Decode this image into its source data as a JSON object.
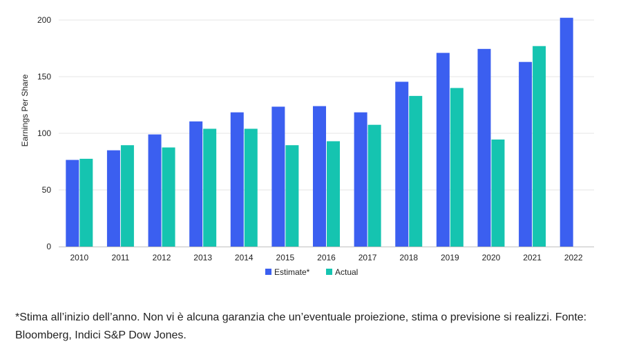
{
  "chart_data": {
    "type": "bar",
    "categories": [
      "2010",
      "2011",
      "2012",
      "2013",
      "2014",
      "2015",
      "2016",
      "2017",
      "2018",
      "2019",
      "2020",
      "2021",
      "2022"
    ],
    "series": [
      {
        "name": "Estimate*",
        "color": "#3b5ff0",
        "values": [
          76.5,
          85,
          99,
          110.5,
          118.5,
          123.5,
          124,
          118.5,
          145.5,
          171,
          174.5,
          163,
          202
        ]
      },
      {
        "name": "Actual",
        "color": "#15c4b0",
        "values": [
          77.5,
          89.5,
          87.5,
          104,
          104,
          89.5,
          93,
          107.5,
          133,
          140,
          94.5,
          177,
          null
        ]
      }
    ],
    "ylabel": "Earnings Per Share",
    "ylim": [
      0,
      200
    ],
    "yticks": [
      0,
      50,
      100,
      150,
      200
    ],
    "grid": true,
    "legend": "bottom"
  },
  "footnote": "*Stima all’inizio dell’anno. Non vi è alcuna garanzia che un’eventuale proiezione, stima o previsione si realizzi. Fonte: Bloomberg, Indici S&P Dow Jones."
}
